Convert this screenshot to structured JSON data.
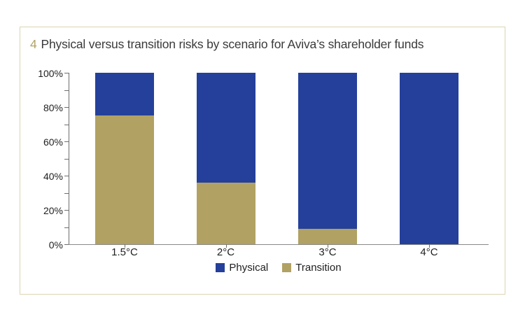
{
  "figure": {
    "number": "4",
    "title": "Physical versus transition risks by scenario for Aviva’s shareholder funds"
  },
  "colors": {
    "physical": "#24409a",
    "transition": "#b1a263",
    "frame_border": "#ddd5b0",
    "figure_number": "#b1a263",
    "title_text": "#3a3a3a",
    "axis_line": "#6e6e6e",
    "tick_text": "#1f1f1f"
  },
  "chart_data": {
    "type": "bar",
    "stacked": true,
    "title": "Physical versus transition risks by scenario for Aviva’s shareholder funds",
    "categories": [
      "1.5°C",
      "2°C",
      "3°C",
      "4°C"
    ],
    "series": [
      {
        "name": "Physical",
        "color": "#24409a",
        "values": [
          25,
          64,
          91,
          100
        ]
      },
      {
        "name": "Transition",
        "color": "#b1a263",
        "values": [
          75,
          36,
          9,
          0
        ]
      }
    ],
    "xlabel": "",
    "ylabel": "",
    "ylim": [
      0,
      100
    ],
    "y_tick_labels": [
      "0%",
      "20%",
      "40%",
      "60%",
      "80%",
      "100%"
    ],
    "y_minor_tick_step": 10,
    "grid": false,
    "legend_position": "bottom"
  }
}
